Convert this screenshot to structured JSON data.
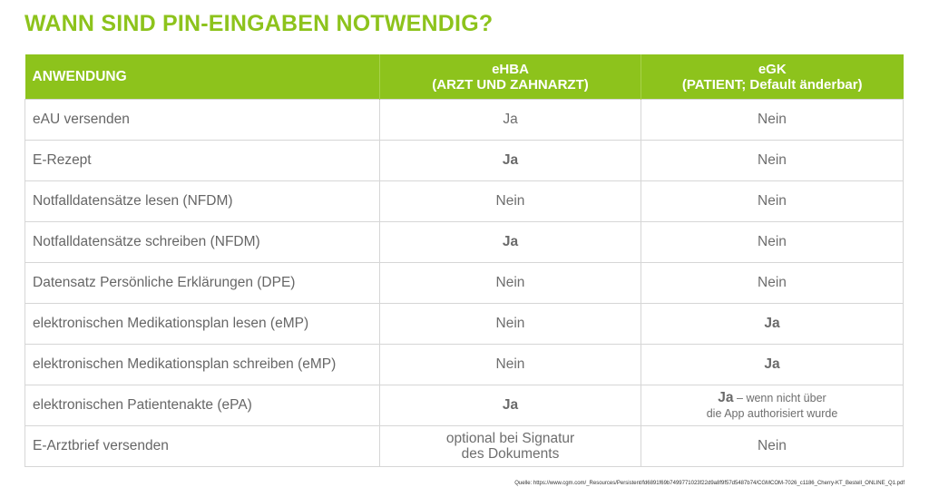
{
  "title": "WANN SIND PIN-EINGABEN NOTWENDIG?",
  "colors": {
    "accent": "#8dc31c",
    "text": "#666666",
    "border": "#d6d6d6"
  },
  "table": {
    "headers": {
      "col1": "ANWENDUNG",
      "col2_line1": "eHBA",
      "col2_line2": "(ARZT UND ZAHNARZT)",
      "col3_line1": "eGK",
      "col3_line2": "(PATIENT; Default änderbar)"
    },
    "rows": [
      {
        "app": "eAU versenden",
        "ehba": "Ja",
        "egk": "Nein"
      },
      {
        "app": "E-Rezept",
        "ehba": "Ja",
        "egk": "Nein"
      },
      {
        "app": "Notfalldatensätze lesen (NFDM)",
        "ehba": "Nein",
        "egk": "Nein"
      },
      {
        "app": "Notfalldatensätze schreiben (NFDM)",
        "ehba": "Ja",
        "egk": "Nein"
      },
      {
        "app": "Datensatz Persönliche Erklärungen (DPE)",
        "ehba": "Nein",
        "egk": "Nein"
      },
      {
        "app": "elektronischen Medikationsplan lesen (eMP)",
        "ehba": "Nein",
        "egk": "Ja"
      },
      {
        "app": "elektronischen Medikationsplan schreiben (eMP)",
        "ehba": "Nein",
        "egk": "Ja"
      },
      {
        "app": "elektronischen Patientenakte (ePA)",
        "ehba": "Ja",
        "egk_strong": "Ja",
        "egk_note1": " – wenn nicht über",
        "egk_note2": "die App authorisiert wurde"
      },
      {
        "app": "E-Arztbrief versenden",
        "ehba_line1": "optional bei Signatur",
        "ehba_line2": "des Dokuments",
        "egk": "Nein"
      }
    ]
  },
  "source": "Quelle:  https://www.cgm.com/_Resources/Persistent/fd6891f69b7499771023f22d9a8f9f57d5487b74/CGMCOM-7026_c1186_Cherry-KT_Bestell_ONLINE_Q1.pdf"
}
